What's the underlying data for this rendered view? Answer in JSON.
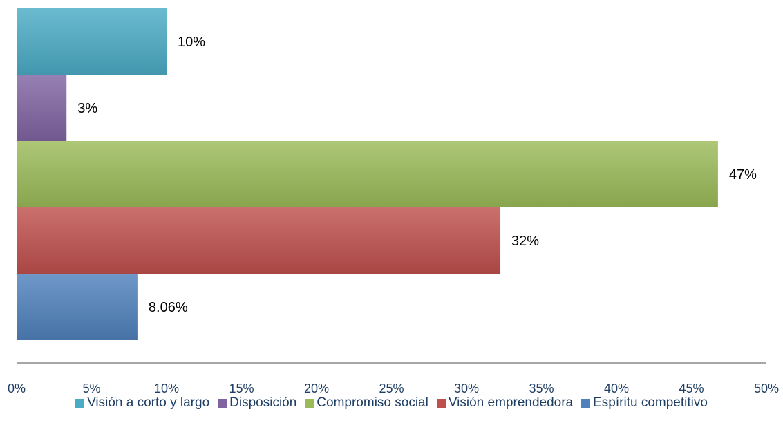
{
  "chart_data": {
    "type": "bar",
    "orientation": "horizontal",
    "title": "",
    "xlabel": "",
    "ylabel": "",
    "xlim": [
      0,
      50
    ],
    "x_ticks": [
      "0%",
      "5%",
      "10%",
      "15%",
      "20%",
      "25%",
      "30%",
      "35%",
      "40%",
      "45%",
      "50%"
    ],
    "grid": false,
    "legend_position": "bottom",
    "series": [
      {
        "name": "Visión a corto y largo",
        "value": 10,
        "label": "10%",
        "color": "#4bacc6"
      },
      {
        "name": "Disposición",
        "value": 3.33,
        "label": "3%",
        "color": "#8064a2"
      },
      {
        "name": "Compromiso social",
        "value": 46.77,
        "label": "47%",
        "color": "#9bbb59"
      },
      {
        "name": "Visión emprendedora",
        "value": 32.26,
        "label": "32%",
        "color": "#c0504d"
      },
      {
        "name": "Espíritu competitivo",
        "value": 8.06,
        "label": "8.06%",
        "color": "#4f81bd"
      }
    ]
  }
}
